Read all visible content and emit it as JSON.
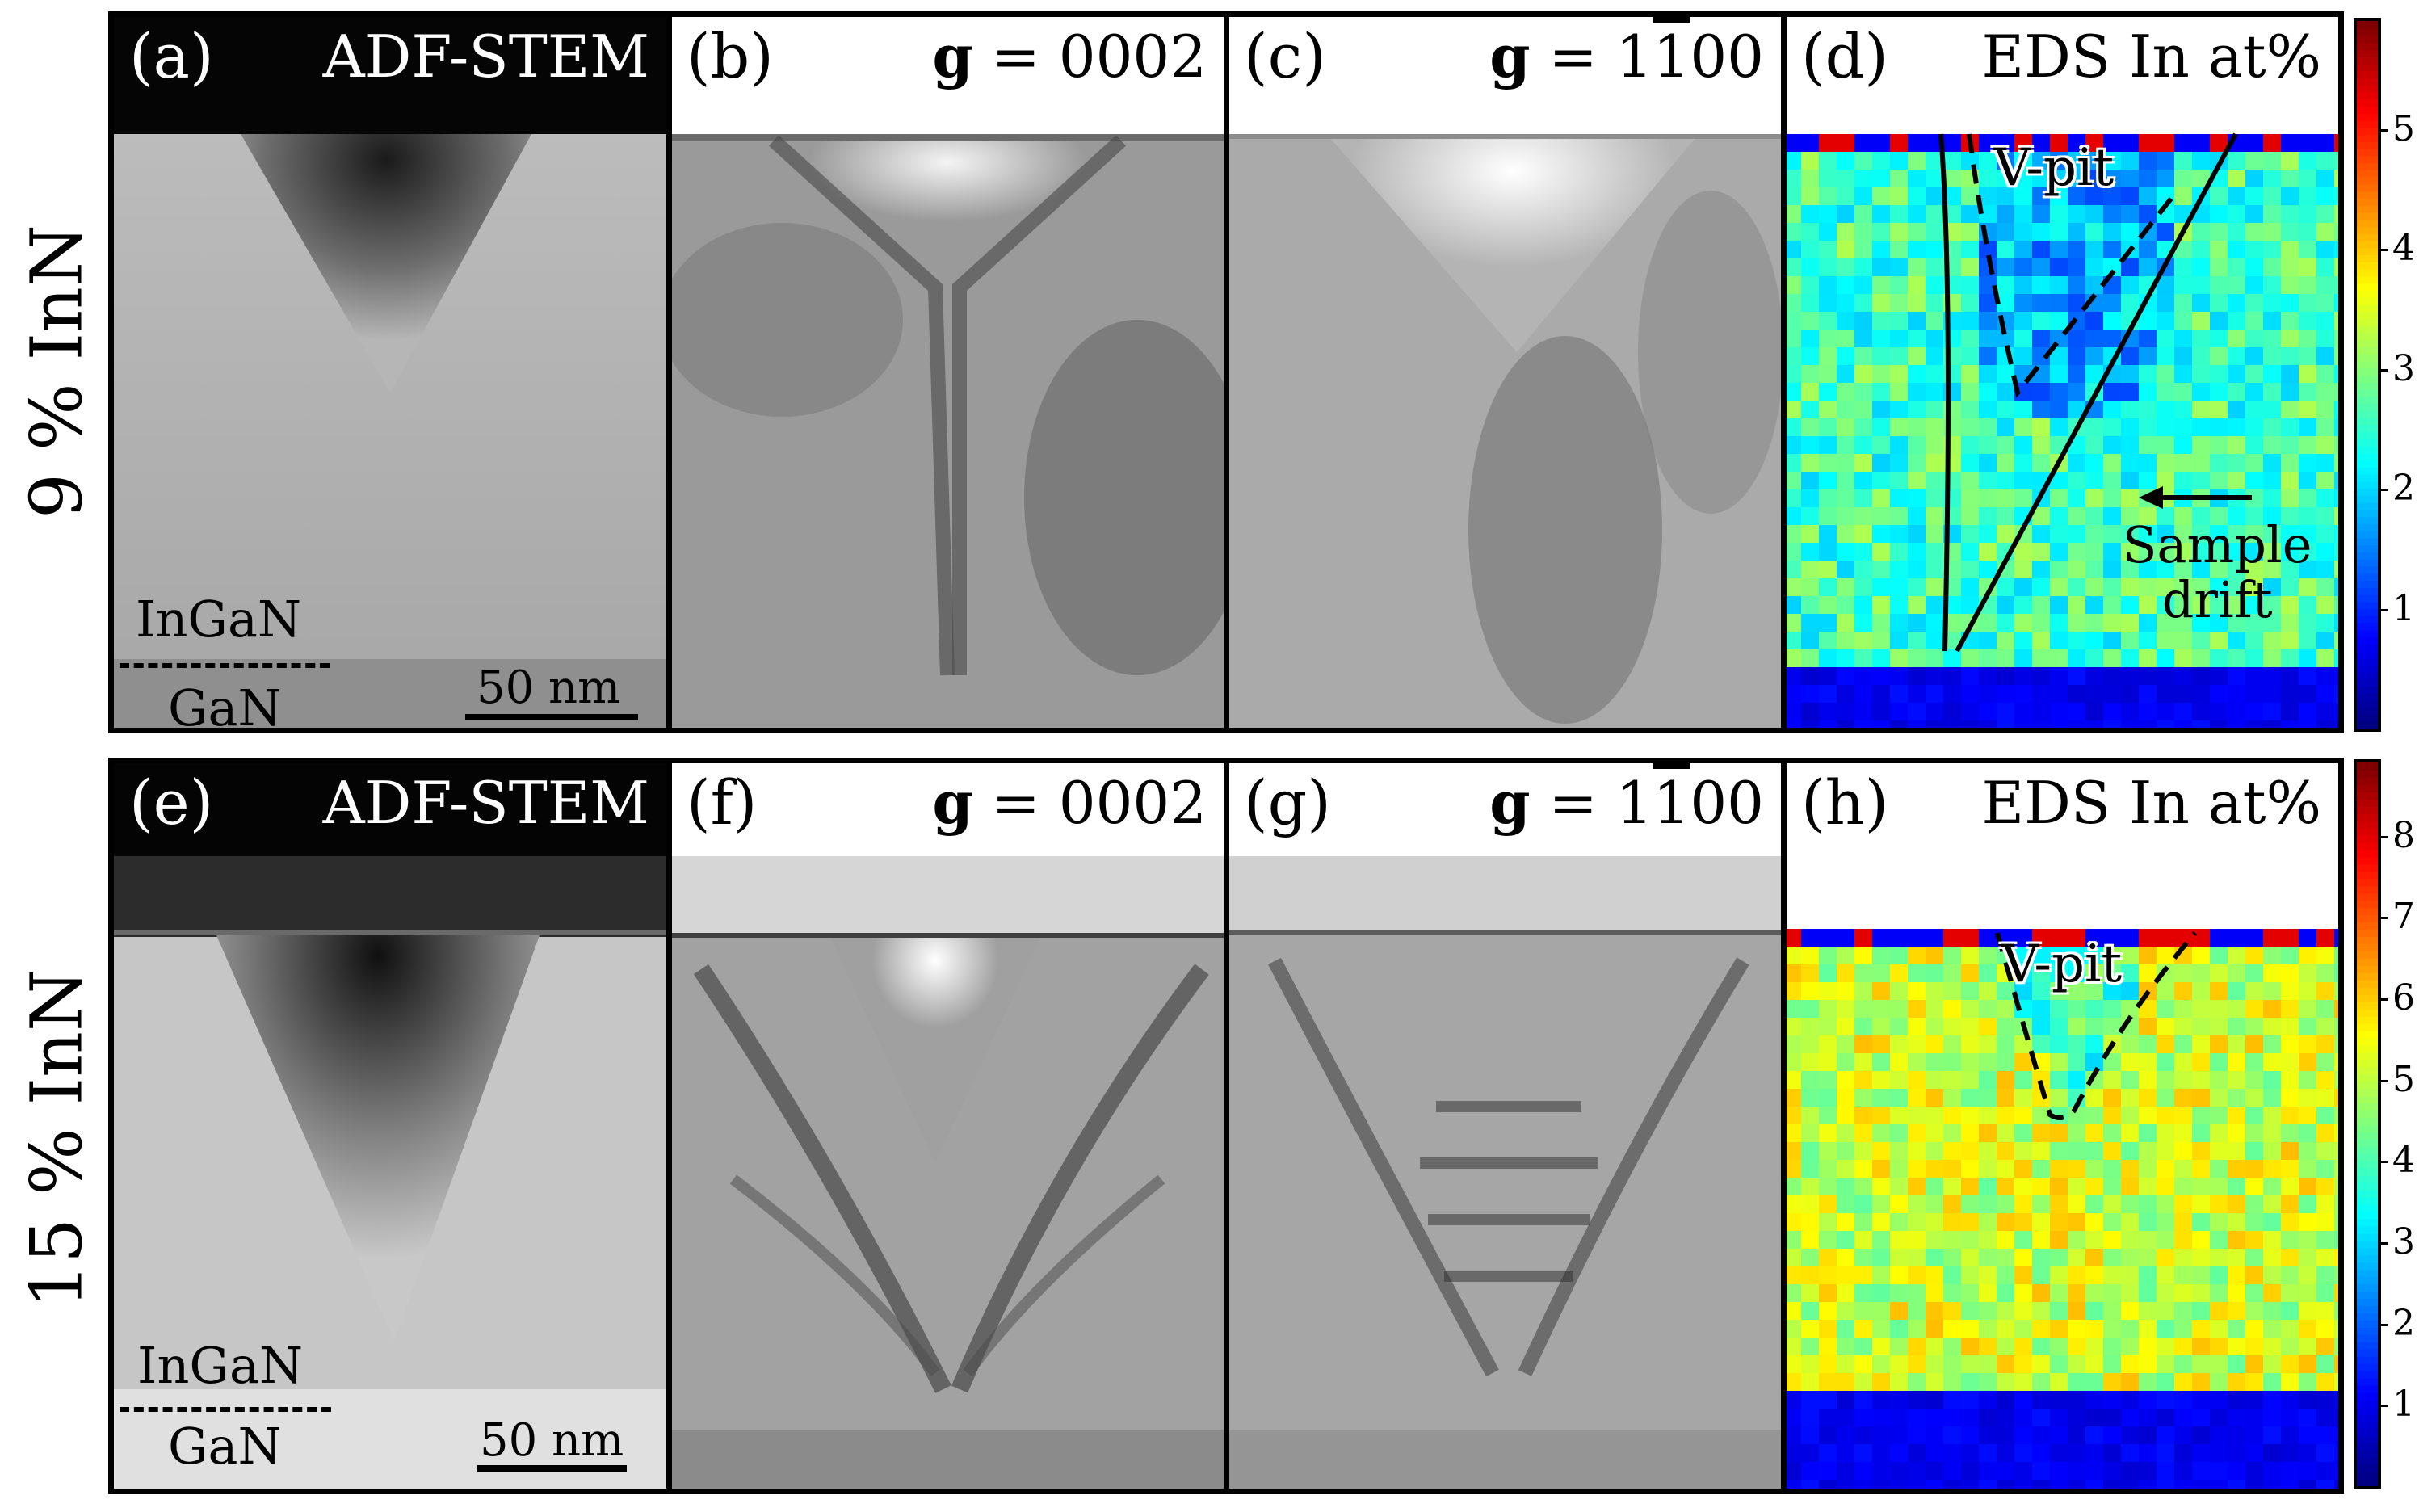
{
  "rows": [
    {
      "label": "9 % InN",
      "panels": [
        {
          "letter": "(a)",
          "mode": "ADF-STEM",
          "layer_top": "InGaN",
          "layer_bottom": "GaN",
          "scale_label": "50 nm"
        },
        {
          "letter": "(b)",
          "g_symbol": "g",
          "g_equals": " = ",
          "g_value": "0002"
        },
        {
          "letter": "(c)",
          "g_symbol": "g",
          "g_equals": " = ",
          "g_digit_a": "1",
          "g_digit_bar": "1",
          "g_digit_rest": "00"
        },
        {
          "letter": "(d)",
          "mode": "EDS In at%",
          "vpit_label": "V-pit",
          "drift_label_1": "Sample",
          "drift_label_2": "drift"
        }
      ],
      "colorbar": {
        "ticks": [
          "1",
          "2",
          "3",
          "4",
          "5"
        ],
        "max": 5.9,
        "colormap": "jet"
      }
    },
    {
      "label": "15 % InN",
      "panels": [
        {
          "letter": "(e)",
          "mode": "ADF-STEM",
          "layer_top": "InGaN",
          "layer_bottom": "GaN",
          "scale_label": "50 nm"
        },
        {
          "letter": "(f)",
          "g_symbol": "g",
          "g_equals": " = ",
          "g_value": "0002"
        },
        {
          "letter": "(g)",
          "g_symbol": "g",
          "g_equals": " = ",
          "g_digit_a": "1",
          "g_digit_bar": "1",
          "g_digit_rest": "00"
        },
        {
          "letter": "(h)",
          "mode": "EDS In at%",
          "vpit_label": "V-pit"
        }
      ],
      "colorbar": {
        "ticks": [
          "1",
          "2",
          "3",
          "4",
          "5",
          "6",
          "7",
          "8"
        ],
        "max": 8.9,
        "colormap": "jet"
      }
    }
  ],
  "colors": {
    "frame": "#000000",
    "eds_low": "#0a14a0",
    "eds_mid": "#3fd0c0",
    "eds_high": "#ffd21c"
  }
}
